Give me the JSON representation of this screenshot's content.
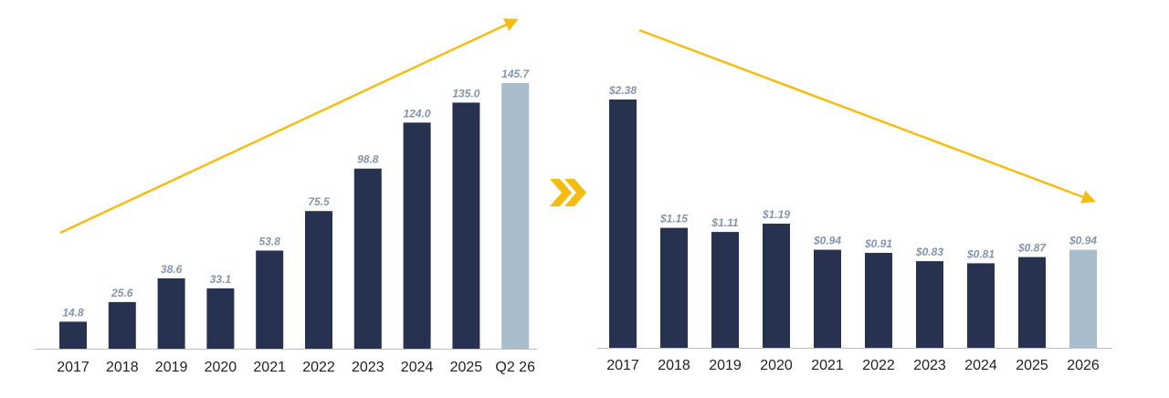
{
  "colors": {
    "bar": "#263250",
    "highlight": "#a8bccc",
    "label": "#8494aa",
    "axis": "#bfbfbf",
    "tick": "#222222",
    "arrow": "#f5bd14"
  },
  "chart_data": [
    {
      "type": "bar",
      "categories": [
        "2017",
        "2018",
        "2019",
        "2020",
        "2021",
        "2022",
        "2023",
        "2024",
        "2025",
        "Q2 26"
      ],
      "values": [
        14.8,
        25.6,
        38.6,
        33.1,
        53.8,
        75.5,
        98.8,
        124.0,
        135.0,
        145.7
      ],
      "labels": [
        "14.8",
        "25.6",
        "38.6",
        "33.1",
        "53.8",
        "75.5",
        "98.8",
        "124.0",
        "135.0",
        "145.7"
      ],
      "highlight_index": 9,
      "trend": "up",
      "ylim": [
        0,
        145.7
      ],
      "grid": false,
      "title": "",
      "xlabel": "",
      "ylabel": ""
    },
    {
      "type": "bar",
      "categories": [
        "2017",
        "2018",
        "2019",
        "2020",
        "2021",
        "2022",
        "2023",
        "2024",
        "2025",
        "2026"
      ],
      "values": [
        2.38,
        1.15,
        1.11,
        1.19,
        0.94,
        0.91,
        0.83,
        0.81,
        0.87,
        0.94
      ],
      "labels": [
        "$2.38",
        "$1.15",
        "$1.11",
        "$1.19",
        "$0.94",
        "$0.91",
        "$0.83",
        "$0.81",
        "$0.87",
        "$0.94"
      ],
      "highlight_index": 9,
      "trend": "down",
      "ylim": [
        0,
        2.38
      ],
      "grid": false,
      "title": "",
      "xlabel": "",
      "ylabel": ""
    }
  ]
}
